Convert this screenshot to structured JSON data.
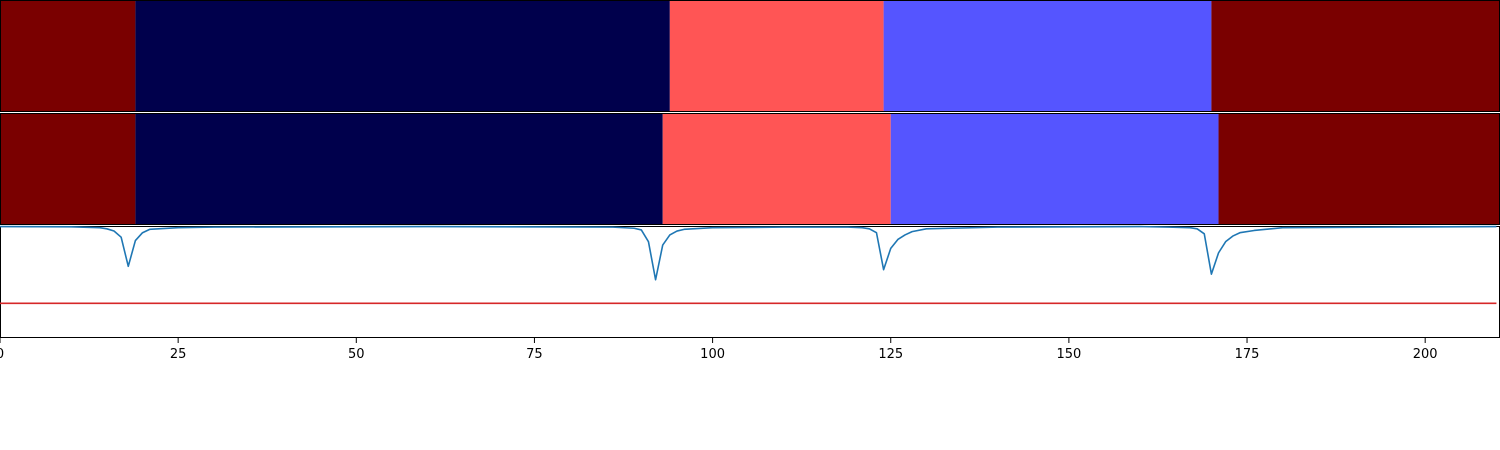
{
  "chart_data": [
    {
      "type": "heatmap",
      "panel": "segments-reference",
      "xlim": [
        0,
        210.5
      ],
      "segments": [
        {
          "start": 0,
          "end": 19,
          "color": "#7a0000"
        },
        {
          "start": 19,
          "end": 94,
          "color": "#00004c"
        },
        {
          "start": 94,
          "end": 124,
          "color": "#ff5555"
        },
        {
          "start": 124,
          "end": 170,
          "color": "#5555ff"
        },
        {
          "start": 170,
          "end": 210.5,
          "color": "#7a0000"
        }
      ]
    },
    {
      "type": "heatmap",
      "panel": "segments-predicted",
      "xlim": [
        0,
        210.5
      ],
      "segments": [
        {
          "start": 0,
          "end": 19,
          "color": "#7a0000"
        },
        {
          "start": 19,
          "end": 93,
          "color": "#00004c"
        },
        {
          "start": 93,
          "end": 125,
          "color": "#ff5555"
        },
        {
          "start": 125,
          "end": 171,
          "color": "#5555ff"
        },
        {
          "start": 171,
          "end": 210.5,
          "color": "#7a0000"
        }
      ]
    },
    {
      "type": "line",
      "panel": "signal",
      "xlim": [
        0,
        210.5
      ],
      "ylim": [
        0,
        1
      ],
      "grid": false,
      "series": [
        {
          "color": "#1f77b4",
          "x": [
            0,
            10,
            14,
            15,
            16,
            17,
            18,
            19,
            20,
            21,
            25,
            30,
            60,
            86,
            89,
            90,
            91,
            92,
            93,
            94,
            95,
            96,
            100,
            110,
            119,
            121,
            122,
            123,
            124,
            125,
            126,
            127,
            128,
            130,
            140,
            160,
            164,
            167,
            168,
            169,
            170,
            171,
            172,
            173,
            174,
            176,
            180,
            195,
            210
          ],
          "y": [
            0.995,
            0.993,
            0.985,
            0.975,
            0.955,
            0.9,
            0.64,
            0.87,
            0.94,
            0.97,
            0.985,
            0.99,
            0.995,
            0.99,
            0.98,
            0.965,
            0.86,
            0.52,
            0.83,
            0.92,
            0.955,
            0.97,
            0.985,
            0.99,
            0.99,
            0.985,
            0.975,
            0.94,
            0.61,
            0.8,
            0.88,
            0.92,
            0.95,
            0.975,
            0.99,
            0.995,
            0.99,
            0.985,
            0.975,
            0.93,
            0.57,
            0.76,
            0.86,
            0.91,
            0.94,
            0.96,
            0.985,
            0.99,
            0.995
          ]
        },
        {
          "color": "#d62728",
          "x": [
            0,
            210
          ],
          "y": [
            0.31,
            0.31
          ]
        }
      ],
      "x_ticks": [
        0,
        25,
        50,
        75,
        100,
        125,
        150,
        175,
        200
      ],
      "x_tick_labels": [
        "0",
        "25",
        "50",
        "75",
        "100",
        "125",
        "150",
        "175",
        "200"
      ]
    }
  ]
}
